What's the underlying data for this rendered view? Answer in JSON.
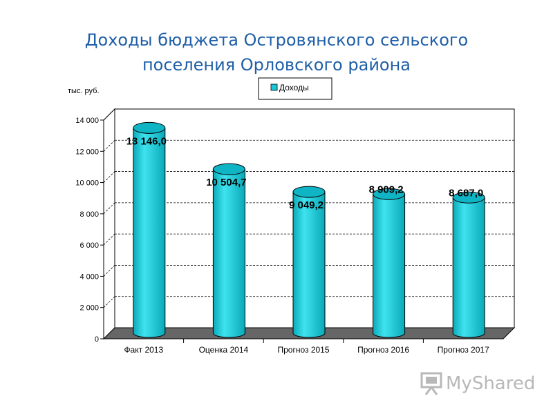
{
  "chart_data": {
    "type": "bar",
    "title_line1": "Доходы бюджета Островянского сельского",
    "title_line2": "поселения Орловского района",
    "ylabel": "тыс. руб.",
    "categories": [
      "Факт 2013",
      "Оценка 2014",
      "Прогноз 2015",
      "Прогноз 2016",
      "Прогноз 2017"
    ],
    "series": [
      {
        "name": "Доходы",
        "values": [
          13146.0,
          10504.7,
          9049.2,
          8909.2,
          8687.0
        ],
        "labels": [
          "13 146,0",
          "10 504,7",
          "9 049,2",
          "8 909,2",
          "8 687,0"
        ]
      }
    ],
    "yticks": [
      0,
      2000,
      4000,
      6000,
      8000,
      10000,
      12000,
      14000
    ],
    "ytick_labels": [
      "0",
      "2 000",
      "4 000",
      "6 000",
      "8 000",
      "10 000",
      "12 000",
      "14 000"
    ],
    "ylim": [
      0,
      14000
    ],
    "grid": true,
    "legend": "top-center",
    "colors": {
      "bar": "#19c7d6",
      "bar_top": "#0fb5c5",
      "floor": "#666666",
      "title": "#1f5fa8"
    }
  },
  "watermark": {
    "text": "MyShared"
  }
}
